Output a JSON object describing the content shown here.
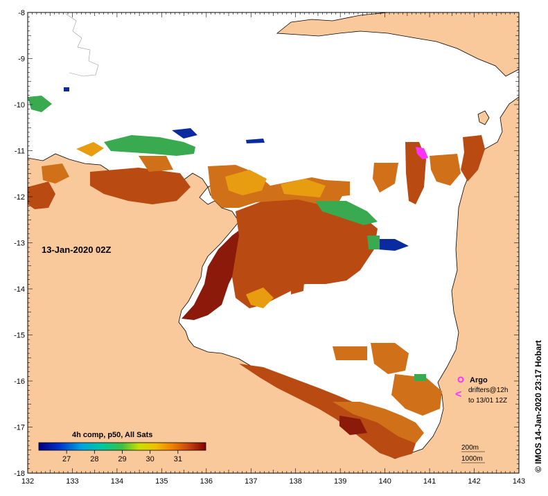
{
  "map": {
    "timestamp_label": "13-Jan-2020 02Z",
    "credit": "© IMOS 14-Jan-2020 23:17 Hobart",
    "x_ticks": [
      "132",
      "133",
      "134",
      "135",
      "136",
      "137",
      "138",
      "139",
      "140",
      "141",
      "142",
      "143"
    ],
    "y_ticks": [
      "-8",
      "-9",
      "-10",
      "-11",
      "-12",
      "-13",
      "-14",
      "-15",
      "-16",
      "-17",
      "-18"
    ],
    "lon_range": [
      132,
      143
    ],
    "lat_range": [
      -18,
      -8
    ],
    "colorbar": {
      "title": "4h comp, p50, All Sats",
      "ticks": [
        "27",
        "28",
        "29",
        "30",
        "31"
      ],
      "range": [
        26,
        32
      ]
    },
    "legend": {
      "argo_label": "Argo",
      "drifter_symbol": "<",
      "drifter_line1": "drifters@12h",
      "drifter_line2": "to 13/01 12Z"
    },
    "depth_labels": [
      "200m",
      "1000m"
    ],
    "colors": {
      "land": "#f9c99b",
      "argo": "#ff33ff",
      "very_warm": "#8b1a0a",
      "warm": "#b84a12",
      "medium": "#d07018",
      "mild": "#e89c10",
      "cool": "#3aaa50",
      "cold": "#0a2aa0"
    }
  }
}
